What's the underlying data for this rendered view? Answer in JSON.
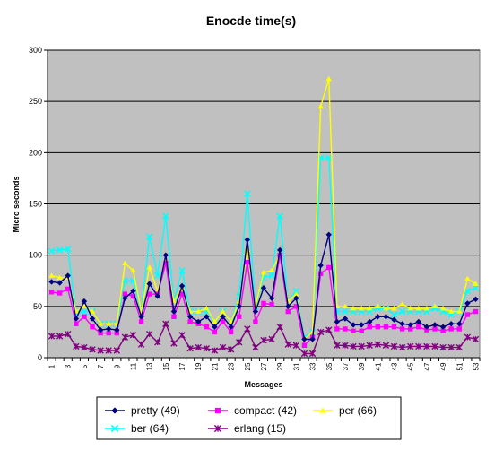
{
  "chart_data": {
    "type": "line",
    "title": "Enocde time(s)",
    "xlabel": "Messages",
    "ylabel": "Micro seconds",
    "ylim": [
      0,
      300
    ],
    "yticks": [
      0,
      50,
      100,
      150,
      200,
      250,
      300
    ],
    "x": [
      1,
      2,
      3,
      4,
      5,
      6,
      7,
      8,
      9,
      10,
      11,
      12,
      13,
      14,
      15,
      16,
      17,
      18,
      19,
      20,
      21,
      22,
      23,
      24,
      25,
      26,
      27,
      28,
      29,
      30,
      31,
      32,
      33,
      34,
      35,
      36,
      37,
      38,
      39,
      40,
      41,
      42,
      43,
      44,
      45,
      46,
      47,
      48,
      49,
      50,
      51,
      52,
      53
    ],
    "xtick_labels": [
      "1",
      "3",
      "5",
      "7",
      "9",
      "11",
      "13",
      "15",
      "17",
      "19",
      "21",
      "23",
      "25",
      "27",
      "29",
      "31",
      "33",
      "35",
      "37",
      "39",
      "41",
      "43",
      "45",
      "47",
      "49",
      "51",
      "53"
    ],
    "grid": true,
    "plot_background": "#c0c0c0",
    "legend": {
      "position": "bottom",
      "columns": 3
    },
    "series": [
      {
        "name": "pretty (49)",
        "color": "#000080",
        "marker": "diamond",
        "values": [
          74,
          73,
          80,
          38,
          55,
          38,
          27,
          28,
          27,
          58,
          65,
          40,
          72,
          60,
          100,
          45,
          70,
          40,
          35,
          40,
          30,
          40,
          30,
          50,
          115,
          45,
          68,
          58,
          105,
          50,
          58,
          18,
          18,
          90,
          120,
          35,
          38,
          32,
          32,
          35,
          40,
          40,
          37,
          33,
          32,
          35,
          30,
          32,
          30,
          33,
          33,
          53,
          57
        ]
      },
      {
        "name": "compact (42)",
        "color": "#ff00ff",
        "marker": "square",
        "values": [
          64,
          63,
          67,
          33,
          40,
          30,
          24,
          24,
          24,
          62,
          60,
          35,
          62,
          62,
          92,
          40,
          62,
          35,
          33,
          30,
          25,
          35,
          25,
          40,
          93,
          35,
          53,
          52,
          100,
          45,
          50,
          12,
          20,
          82,
          88,
          28,
          28,
          26,
          26,
          30,
          30,
          30,
          30,
          28,
          28,
          30,
          27,
          28,
          26,
          28,
          28,
          42,
          45
        ]
      },
      {
        "name": "per (66)",
        "color": "#ffff00",
        "marker": "triangle",
        "values": [
          80,
          78,
          78,
          45,
          50,
          45,
          33,
          33,
          33,
          92,
          85,
          45,
          88,
          65,
          95,
          55,
          68,
          45,
          45,
          48,
          35,
          45,
          35,
          55,
          105,
          50,
          83,
          85,
          100,
          55,
          62,
          18,
          25,
          245,
          272,
          50,
          50,
          48,
          48,
          48,
          50,
          48,
          48,
          52,
          48,
          48,
          48,
          50,
          48,
          45,
          45,
          77,
          72
        ]
      },
      {
        "name": "ber (64)",
        "color": "#00ffff",
        "marker": "x",
        "values": [
          104,
          105,
          106,
          43,
          45,
          45,
          33,
          33,
          33,
          75,
          75,
          45,
          118,
          80,
          138,
          55,
          85,
          45,
          45,
          45,
          35,
          45,
          35,
          60,
          160,
          50,
          78,
          80,
          138,
          55,
          65,
          20,
          25,
          195,
          195,
          45,
          45,
          45,
          45,
          45,
          48,
          48,
          42,
          45,
          45,
          45,
          45,
          48,
          45,
          42,
          45,
          65,
          68
        ]
      },
      {
        "name": "erlang (15)",
        "color": "#800080",
        "marker": "star",
        "values": [
          21,
          21,
          23,
          11,
          10,
          8,
          7,
          7,
          7,
          20,
          22,
          13,
          23,
          15,
          33,
          14,
          22,
          9,
          10,
          9,
          7,
          10,
          8,
          15,
          28,
          10,
          17,
          18,
          30,
          13,
          12,
          4,
          4,
          25,
          27,
          12,
          12,
          11,
          11,
          12,
          13,
          12,
          11,
          10,
          11,
          11,
          11,
          11,
          10,
          10,
          10,
          20,
          18
        ]
      }
    ]
  }
}
